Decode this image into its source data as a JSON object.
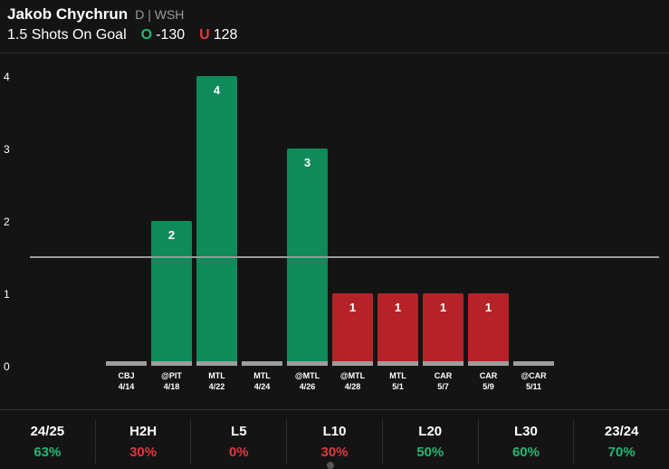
{
  "header": {
    "player_name": "Jakob Chychrun",
    "player_meta": "D | WSH",
    "prop": "1.5 Shots On Goal",
    "over_key": "O",
    "over_odds": "-130",
    "under_key": "U",
    "under_odds": "128"
  },
  "colors": {
    "over": "#0f8a5a",
    "under": "#b52328",
    "zero": "#9e9e9e",
    "line": "#9a9a9a"
  },
  "chart_data": {
    "type": "bar",
    "line": 1.5,
    "ylim": [
      0,
      4
    ],
    "yticks": [
      0,
      1,
      2,
      3,
      4
    ],
    "categories": [
      {
        "opp": "CBJ",
        "date": "4/14"
      },
      {
        "opp": "@PIT",
        "date": "4/18"
      },
      {
        "opp": "MTL",
        "date": "4/22"
      },
      {
        "opp": "MTL",
        "date": "4/24"
      },
      {
        "opp": "@MTL",
        "date": "4/26"
      },
      {
        "opp": "@MTL",
        "date": "4/28"
      },
      {
        "opp": "MTL",
        "date": "5/1"
      },
      {
        "opp": "CAR",
        "date": "5/7"
      },
      {
        "opp": "CAR",
        "date": "5/9"
      },
      {
        "opp": "@CAR",
        "date": "5/11"
      }
    ],
    "values": [
      0,
      2,
      4,
      0,
      3,
      1,
      1,
      1,
      1,
      0
    ]
  },
  "stats": [
    {
      "label": "24/25",
      "value": "63%",
      "status": "good"
    },
    {
      "label": "H2H",
      "value": "30%",
      "status": "bad"
    },
    {
      "label": "L5",
      "value": "0%",
      "status": "bad"
    },
    {
      "label": "L10",
      "value": "30%",
      "status": "bad"
    },
    {
      "label": "L20",
      "value": "50%",
      "status": "good"
    },
    {
      "label": "L30",
      "value": "60%",
      "status": "good"
    },
    {
      "label": "23/24",
      "value": "70%",
      "status": "good"
    }
  ]
}
